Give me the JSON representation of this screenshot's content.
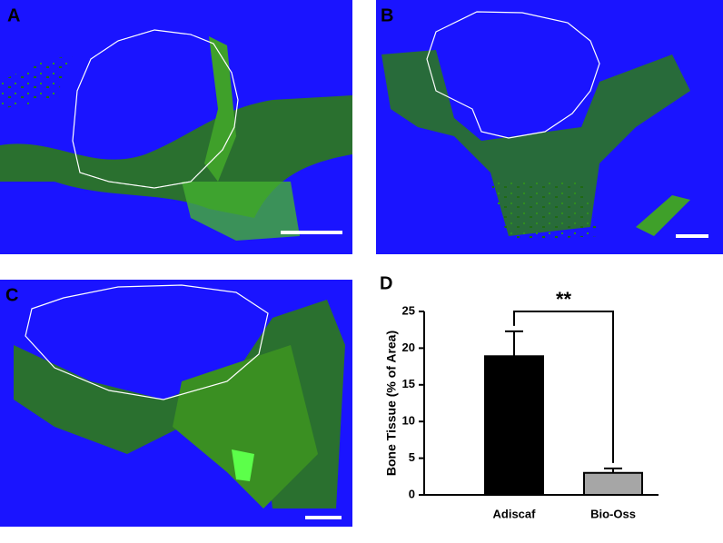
{
  "panels": {
    "a": "A",
    "b": "B",
    "c": "C"
  },
  "chart_data": {
    "type": "bar",
    "panel": "D",
    "ylabel": "Bone Tissue (% of Area)",
    "categories": [
      "Adiscaf",
      "Bio-Oss"
    ],
    "values": [
      18.9,
      3.0
    ],
    "errors": [
      3.4,
      0.6
    ],
    "colors": [
      "#000000",
      "#a6a6a6"
    ],
    "ylim": [
      0,
      25
    ],
    "yticks": [
      0,
      5,
      10,
      15,
      20,
      25
    ],
    "annotation": "**"
  }
}
